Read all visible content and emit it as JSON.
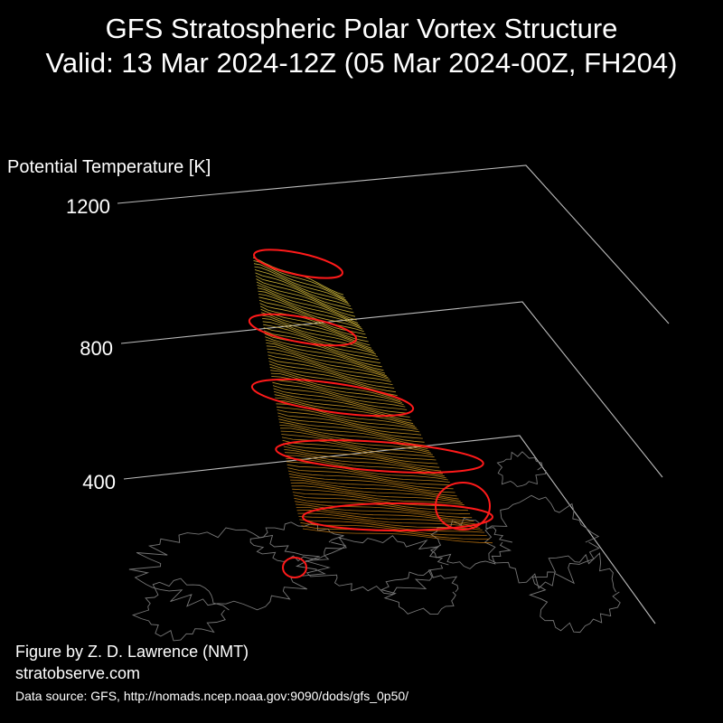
{
  "title": {
    "line1": "GFS Stratospheric Polar Vortex Structure",
    "line2": "Valid: 13 Mar 2024-12Z  (05 Mar 2024-00Z, FH204)"
  },
  "chart_data": {
    "type": "3d-surface",
    "zlabel": "Potential Temperature [K]",
    "z_ticks": [
      "400",
      "800",
      "1200"
    ],
    "z_values": [
      400,
      800,
      1200
    ],
    "grid": true,
    "colors": {
      "background": "#000000",
      "axis": "#bbbbbb",
      "coast": "#777777",
      "contour": "#ff1a1a",
      "surface_low": "#c87a10",
      "surface_high": "#e8d040"
    }
  },
  "credits": {
    "author": "Figure by Z. D. Lawrence (NMT)",
    "site": "stratobserve.com",
    "source": "Data source: GFS, http://nomads.ncep.noaa.gov:9090/dods/gfs_0p50/"
  }
}
